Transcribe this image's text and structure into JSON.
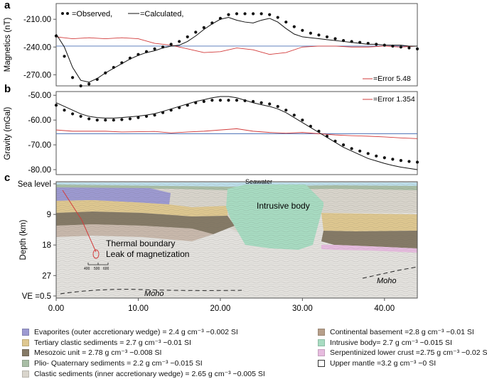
{
  "panel_labels": [
    "a",
    "b",
    "c"
  ],
  "chart_data": [
    {
      "type": "line",
      "panel": "a",
      "ylabel": "Magnetics (nT)",
      "ylim": [
        -282,
        -193
      ],
      "yticks": [
        -210,
        -240,
        -270
      ],
      "ytick_labels": [
        "-210.00",
        "-240.00",
        "-270.00"
      ],
      "xlim": [
        0,
        44
      ],
      "legend": {
        "observed": "=Observed,",
        "calculated": "=Calculated,",
        "error": "=Error 5.48"
      },
      "observed": {
        "x": [
          0,
          1,
          2,
          3,
          4,
          5,
          6,
          7,
          8,
          9,
          10,
          11,
          12,
          13,
          14,
          15,
          16,
          17,
          18,
          19,
          20,
          21,
          22,
          23,
          24,
          25,
          26,
          27,
          28,
          29,
          30,
          31,
          32,
          33,
          34,
          35,
          36,
          37,
          38,
          39,
          40,
          41,
          42,
          43,
          44
        ],
        "y": [
          -228,
          -250,
          -273,
          -282,
          -280,
          -275,
          -268,
          -262,
          -257,
          -252,
          -248,
          -245,
          -242,
          -240,
          -237,
          -234,
          -229,
          -224,
          -219,
          -214,
          -209,
          -205,
          -204,
          -204,
          -204,
          -204,
          -205,
          -208,
          -213,
          -218,
          -222,
          -225,
          -227,
          -229,
          -231,
          -233,
          -234,
          -235,
          -236,
          -237,
          -238,
          -239,
          -240,
          -241,
          -242
        ]
      },
      "calculated": {
        "x": [
          0,
          1,
          2,
          3,
          4,
          5,
          6,
          7,
          8,
          9,
          10,
          11,
          12,
          13,
          14,
          15,
          16,
          17,
          18,
          19,
          20,
          21,
          22,
          23,
          24,
          25,
          26,
          27,
          28,
          29,
          30,
          31,
          32,
          33,
          34,
          35,
          36,
          37,
          38,
          39,
          40,
          41,
          42,
          43,
          44
        ],
        "y": [
          -226,
          -240,
          -262,
          -276,
          -278,
          -274,
          -268,
          -263,
          -258,
          -253,
          -249,
          -246,
          -244,
          -241,
          -239,
          -238,
          -234,
          -228,
          -221,
          -215,
          -210,
          -208,
          -211,
          -213,
          -214,
          -211,
          -209,
          -213,
          -220,
          -226,
          -229,
          -230,
          -231,
          -232,
          -233,
          -234,
          -235,
          -236,
          -237,
          -237,
          -238,
          -238,
          -238,
          -239,
          -239
        ]
      },
      "error": {
        "x": [
          0,
          2,
          4,
          6,
          8,
          10,
          12,
          14,
          16,
          18,
          20,
          22,
          24,
          26,
          28,
          30,
          32,
          34,
          36,
          38,
          40,
          42,
          44
        ],
        "y": [
          -229,
          -231,
          -230,
          -231,
          -230,
          -231,
          -236,
          -238,
          -242,
          -246,
          -245,
          -241,
          -243,
          -248,
          -246,
          -240,
          -239,
          -239,
          -240,
          -240,
          -239,
          -240,
          -239
        ]
      },
      "baseline": -239
    },
    {
      "type": "line",
      "panel": "b",
      "ylabel": "Gravity (mGal)",
      "ylim": [
        -82,
        -48.5
      ],
      "yticks": [
        -50,
        -60,
        -70,
        -80
      ],
      "ytick_labels": [
        "-50.00",
        "-60.00",
        "-70.00",
        "-80.00"
      ],
      "xlim": [
        0,
        44
      ],
      "legend": {
        "error": "=Error 1.354"
      },
      "observed": {
        "x": [
          0,
          1,
          2,
          3,
          4,
          5,
          6,
          7,
          8,
          9,
          10,
          11,
          12,
          13,
          14,
          15,
          16,
          17,
          18,
          19,
          20,
          21,
          22,
          23,
          24,
          25,
          26,
          27,
          28,
          29,
          30,
          31,
          32,
          33,
          34,
          35,
          36,
          37,
          38,
          39,
          40,
          41,
          42,
          43,
          44
        ],
        "y": [
          -54,
          -56,
          -57.5,
          -58.5,
          -59.5,
          -60,
          -60,
          -60,
          -59.8,
          -59.5,
          -59,
          -58.5,
          -58,
          -57,
          -56,
          -55,
          -54,
          -53,
          -52.5,
          -52,
          -52,
          -52,
          -52,
          -52.2,
          -52.5,
          -53,
          -53.5,
          -54.5,
          -56,
          -58,
          -60,
          -62.5,
          -64.5,
          -66.5,
          -68.5,
          -70,
          -71.5,
          -72.5,
          -73.5,
          -74.5,
          -75.2,
          -75.8,
          -76.3,
          -76.7,
          -77
        ]
      },
      "calculated": {
        "x": [
          0,
          1,
          2,
          3,
          4,
          5,
          6,
          7,
          8,
          9,
          10,
          11,
          12,
          13,
          14,
          15,
          16,
          17,
          18,
          19,
          20,
          21,
          22,
          23,
          24,
          25,
          26,
          27,
          28,
          29,
          30,
          31,
          32,
          33,
          34,
          35,
          36,
          37,
          38,
          39,
          40,
          41,
          42,
          43,
          44
        ],
        "y": [
          -53,
          -54.5,
          -56,
          -57.5,
          -58.5,
          -59,
          -59.2,
          -59.2,
          -59,
          -58.7,
          -58.4,
          -58,
          -57.4,
          -56.5,
          -55.5,
          -54.5,
          -53.5,
          -52.5,
          -51.8,
          -51,
          -50.5,
          -50.5,
          -51,
          -52,
          -53,
          -53.8,
          -54.5,
          -55.5,
          -57,
          -59,
          -61,
          -63,
          -65,
          -67,
          -69,
          -71,
          -72.5,
          -74,
          -75.5,
          -76.5,
          -77.5,
          -78.3,
          -79,
          -79.5,
          -80
        ]
      },
      "error": {
        "x": [
          0,
          2,
          4,
          6,
          8,
          10,
          12,
          14,
          16,
          18,
          20,
          22,
          24,
          26,
          28,
          30,
          32,
          34,
          36,
          38,
          40,
          42,
          44
        ],
        "y": [
          -64,
          -64.5,
          -64.5,
          -64.5,
          -64.8,
          -64.7,
          -64.6,
          -65.2,
          -64.8,
          -64.5,
          -64,
          -63.5,
          -64.5,
          -65,
          -65.3,
          -65,
          -65.5,
          -66,
          -66.3,
          -66.5,
          -66.8,
          -67.2,
          -67.5
        ]
      },
      "baseline": -65.5
    },
    {
      "type": "area",
      "panel": "c",
      "ylabel": "Depth (km)",
      "xlim": [
        0,
        44
      ],
      "xticks": [
        0,
        10,
        20,
        30,
        40
      ],
      "xtick_labels": [
        "0.00",
        "10.00",
        "20.00",
        "30.00",
        "40.00"
      ],
      "ytick_labels": [
        "Sea level",
        "9",
        "18",
        "27",
        "VE =0.5"
      ],
      "yticks": [
        0,
        9,
        18,
        27,
        33
      ],
      "ylim": [
        0,
        33
      ],
      "annotations": [
        "Seawater",
        "Intrusive body",
        "Thermal boundary",
        "Leak of magnetization",
        "Moho",
        "Moho"
      ],
      "scale_ticks": [
        "400",
        "500",
        "600"
      ]
    }
  ],
  "legend_left": [
    {
      "label": "Evaporites (outer accretionary wedge) = 2.4 g cm⁻³ −0.002 SI",
      "color": "#9d9ad1"
    },
    {
      "label": "Tertiary clastic sediments = 2.7  g cm⁻³ −0.01 SI",
      "color": "#dfc890"
    },
    {
      "label": "Mesozoic unit = 2.78  g cm⁻³ −0.008 SI",
      "color": "#857a66"
    },
    {
      "label": "Plio- Quaternary sediments = 2.2  g cm⁻³ −0.015 SI",
      "color": "#a9bea6"
    },
    {
      "label": "Clastic sediments (inner accretionary wedge) = 2.65 g cm⁻³ −0.005 SI",
      "color": "#d9d5cc"
    }
  ],
  "legend_right": [
    {
      "label": "Continental basement =2.8 g cm⁻³ −0.01 SI",
      "color": "#b79f8a"
    },
    {
      "label": "Intrusive body= 2.7 g cm⁻³ −0.015 SI",
      "color": "#a8dcc2"
    },
    {
      "label": "Serpentinized lower crust =2.75 g cm⁻³ −0.02 SI",
      "color": "#e7bcdf"
    },
    {
      "label": "Upper mantle =3.2  g cm⁻³ −0 SI",
      "color": "#ffffff"
    }
  ]
}
